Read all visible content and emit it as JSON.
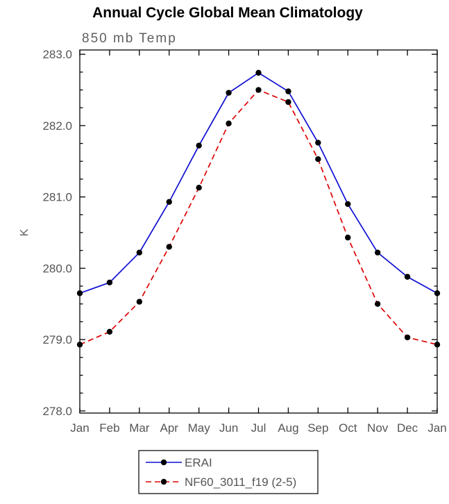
{
  "title": "Annual Cycle Global Mean Climatology",
  "subtitle": "850 mb Temp",
  "ylabel": "K",
  "chart_data": {
    "type": "line",
    "categories": [
      "Jan",
      "Feb",
      "Mar",
      "Apr",
      "May",
      "Jun",
      "Jul",
      "Aug",
      "Sep",
      "Oct",
      "Nov",
      "Dec",
      "Jan"
    ],
    "series": [
      {
        "name": "ERAI",
        "color": "#0f0fd2",
        "style": "solid",
        "marker": "filled-circle",
        "values": [
          279.65,
          279.8,
          280.22,
          280.93,
          281.72,
          282.46,
          282.74,
          282.48,
          281.76,
          280.9,
          280.22,
          279.88,
          279.65
        ]
      },
      {
        "name": "NF60_3011_f19 (2-5)",
        "color": "#dd0000",
        "style": "dashed",
        "marker": "filled-circle",
        "values": [
          278.93,
          279.11,
          279.53,
          280.3,
          281.13,
          282.03,
          282.5,
          282.33,
          281.53,
          280.43,
          279.5,
          279.03,
          278.93
        ]
      }
    ],
    "ylim": [
      277.97,
      283.06
    ],
    "yticks": [
      278.0,
      279.0,
      280.0,
      281.0,
      282.0,
      283.0
    ],
    "ytick_labels": [
      "278.0",
      "279.0",
      "280.0",
      "281.0",
      "282.0",
      "283.0"
    ],
    "y_minor_step": 0.25,
    "marker_color": "#000000",
    "grid": false,
    "legend_position": "bottom"
  },
  "legend": {
    "entries": [
      {
        "label": "ERAI"
      },
      {
        "label": "NF60_3011_f19 (2-5)"
      }
    ]
  }
}
